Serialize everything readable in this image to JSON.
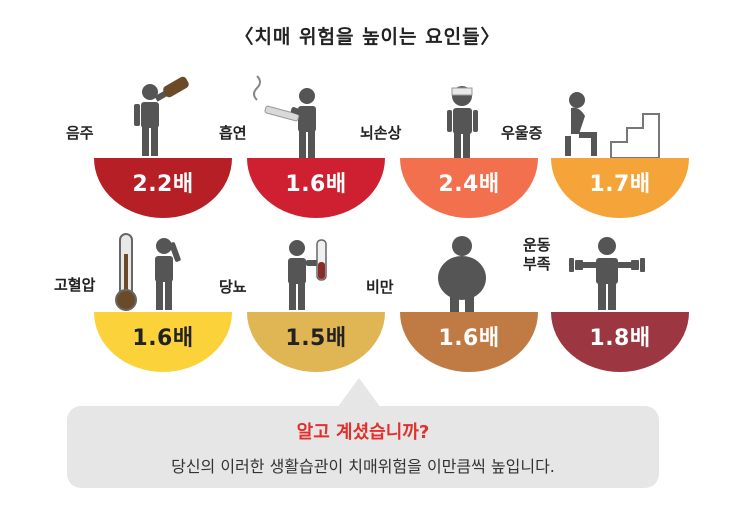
{
  "title": "〈치매 위험을 높이는 요인들〉",
  "factors": [
    {
      "label": "음주",
      "value": "2.2배",
      "icon": "drinking-person-icon",
      "color": "#b71f26"
    },
    {
      "label": "흡연",
      "value": "1.6배",
      "icon": "smoking-person-icon",
      "color": "#cf2031"
    },
    {
      "label": "뇌손상",
      "value": "2.4배",
      "icon": "head-injury-person-icon",
      "color": "#f2704e"
    },
    {
      "label": "우울증",
      "value": "1.7배",
      "icon": "depressed-person-icon",
      "color": "#f5a43a"
    },
    {
      "label": "고혈압",
      "value": "1.6배",
      "icon": "thermometer-person-icon",
      "color": "#fbd23a"
    },
    {
      "label": "당뇨",
      "value": "1.5배",
      "icon": "test-tube-person-icon",
      "color": "#e0b654"
    },
    {
      "label": "비만",
      "value": "1.6배",
      "icon": "obese-person-icon",
      "color": "#c07b45"
    },
    {
      "label": "운동\n부족",
      "value": "1.8배",
      "icon": "dumbbell-person-icon",
      "color": "#9c3640"
    }
  ],
  "callout": {
    "question": "알고 계셨습니까?",
    "message": "당신의 이러한 생활습관이 치매위험을 이만큼씩 높입니다."
  }
}
